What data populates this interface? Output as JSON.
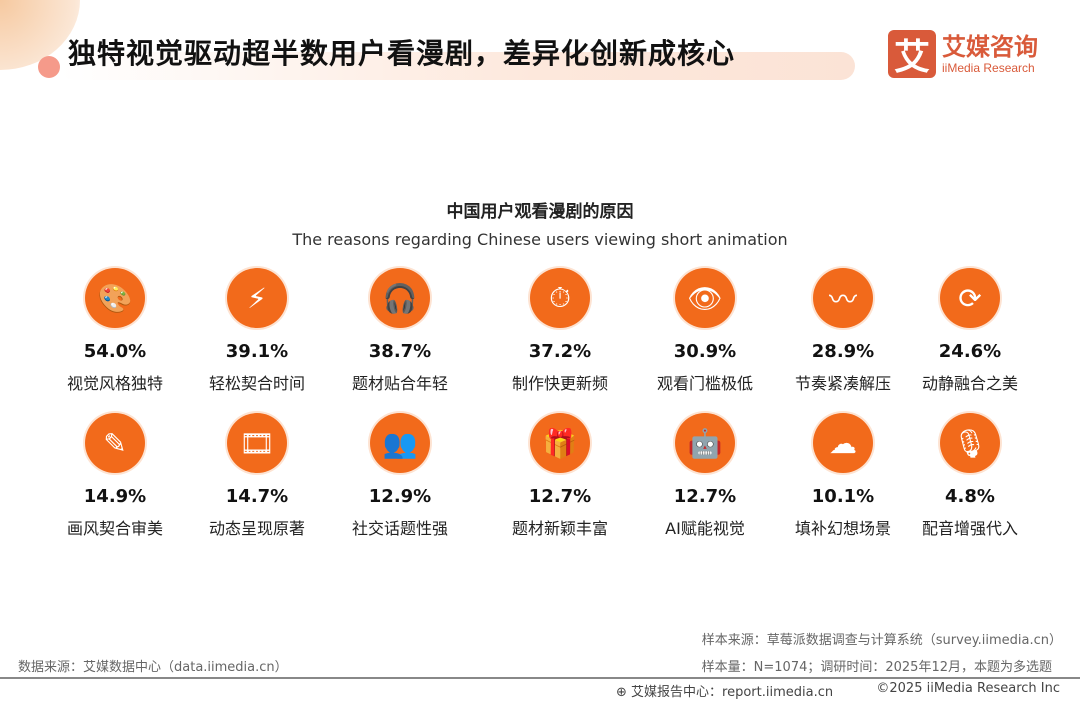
{
  "header": {
    "title": "独特视觉驱动超半数用户看漫剧，差异化创新成核心",
    "logo_mark": "艾",
    "logo_cn": "艾媒咨询",
    "logo_en": "iiMedia Research"
  },
  "chart_data": {
    "type": "bar",
    "title": "中国用户观看漫剧的原因",
    "subtitle": "The reasons regarding Chinese users viewing short animation",
    "categories": [
      "视觉风格独特",
      "轻松契合时间",
      "题材贴合年轻",
      "制作快更新频",
      "观看门槛极低",
      "节奏紧凑解压",
      "动静融合之美",
      "画风契合审美",
      "动态呈现原著",
      "社交话题性强",
      "题材新颖丰富",
      "AI赋能视觉",
      "填补幻想场景",
      "配音增强代入"
    ],
    "values": [
      54.0,
      39.1,
      38.7,
      37.2,
      30.9,
      28.9,
      24.6,
      14.9,
      14.7,
      12.9,
      12.7,
      12.7,
      10.1,
      4.8
    ],
    "value_labels": [
      "54.0%",
      "39.1%",
      "38.7%",
      "37.2%",
      "30.9%",
      "28.9%",
      "24.6%",
      "14.9%",
      "14.7%",
      "12.9%",
      "12.7%",
      "12.7%",
      "10.1%",
      "4.8%"
    ],
    "icons": [
      "palette-icon",
      "lightning-clock-icon",
      "headset-icon",
      "clock-refresh-icon",
      "eye-icon",
      "pulse-icon",
      "rotate-icon",
      "brush-icon",
      "film-book-icon",
      "group-chat-icon",
      "gift-icon",
      "robot-icon",
      "cloud-icon",
      "microphone-icon"
    ],
    "glyphs": [
      "🎨",
      "⚡",
      "🎧",
      "⏱",
      "👁",
      "〰",
      "⟳",
      "✎",
      "🎞",
      "👥",
      "🎁",
      "🤖",
      "☁",
      "🎙"
    ],
    "unit": "%",
    "accent": "#f26a1b"
  },
  "footer": {
    "source_left": "数据来源：艾媒数据中心（data.iimedia.cn）",
    "sample_source": "样本来源：草莓派数据调查与计算系统（survey.iimedia.cn）",
    "sample_size": "样本量：N=1074；调研时间：2025年12月，本题为多选题",
    "report_center": "艾媒报告中心：report.iimedia.cn",
    "copyright": "©2025  iiMedia Research  Inc"
  }
}
